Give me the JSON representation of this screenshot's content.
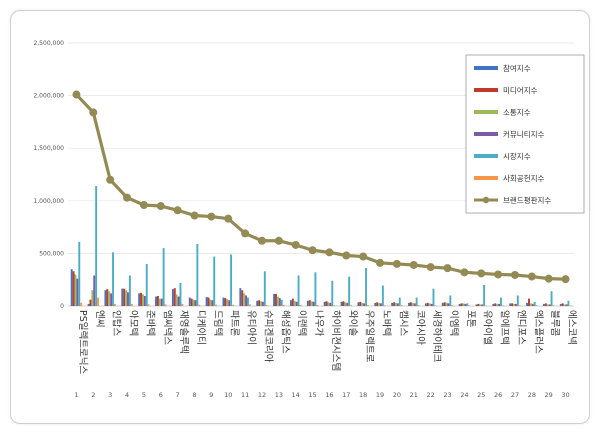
{
  "chart_data": {
    "type": "bar",
    "title": "",
    "xlabel": "",
    "ylabel": "",
    "ylim": [
      0,
      2500000
    ],
    "yticks": [
      "0",
      "500,000",
      "1,000,000",
      "1,500,000",
      "2,000,000",
      "2,500,000"
    ],
    "grid": true,
    "legend_position": "right",
    "categories": [
      "PS일렉트로닉스",
      "엔씨",
      "인탑스",
      "아모텍",
      "준바텍",
      "엠씨넥스",
      "재영솔루텍",
      "디케이티",
      "드림텍",
      "파트론",
      "유티아이",
      "슈피겐코리아",
      "해성옵틱스",
      "이랜텍",
      "나우가",
      "하이비젼시스템",
      "와이솔",
      "우주일렉트로",
      "노바텍",
      "캠시스",
      "코아시아",
      "세경하이테크",
      "이엠텍",
      "포톤",
      "유아이엘",
      "알에프텍",
      "엔디포스",
      "엑스플러스",
      "블루콤",
      "에스코넥"
    ],
    "category_numbers": [
      "1",
      "2",
      "3",
      "4",
      "5",
      "6",
      "7",
      "8",
      "9",
      "10",
      "11",
      "12",
      "13",
      "14",
      "15",
      "16",
      "17",
      "18",
      "19",
      "20",
      "21",
      "22",
      "23",
      "24",
      "25",
      "26",
      "27",
      "28",
      "29",
      "30"
    ],
    "series": [
      {
        "name": "참여지수",
        "type": "bar",
        "color": "#4472c4",
        "values": [
          350000,
          20000,
          150000,
          165000,
          120000,
          90000,
          160000,
          80000,
          85000,
          80000,
          170000,
          50000,
          115000,
          55000,
          50000,
          40000,
          40000,
          35000,
          30000,
          30000,
          30000,
          25000,
          30000,
          20000,
          15000,
          20000,
          25000,
          30000,
          20000,
          20000
        ]
      },
      {
        "name": "미디어지수",
        "type": "bar",
        "color": "#c0392b",
        "values": [
          330000,
          60000,
          160000,
          165000,
          125000,
          95000,
          170000,
          70000,
          80000,
          75000,
          150000,
          55000,
          115000,
          70000,
          55000,
          45000,
          45000,
          40000,
          35000,
          35000,
          35000,
          30000,
          35000,
          25000,
          20000,
          25000,
          25000,
          70000,
          25000,
          25000
        ]
      },
      {
        "name": "소통지수",
        "type": "bar",
        "color": "#9bbb59",
        "values": [
          300000,
          150000,
          140000,
          150000,
          110000,
          70000,
          110000,
          60000,
          60000,
          65000,
          120000,
          45000,
          90000,
          50000,
          45000,
          35000,
          35000,
          30000,
          30000,
          30000,
          30000,
          25000,
          30000,
          25000,
          15000,
          20000,
          20000,
          25000,
          15000,
          15000
        ]
      },
      {
        "name": "커뮤니티지수",
        "type": "bar",
        "color": "#7d5aa6",
        "values": [
          260000,
          290000,
          120000,
          130000,
          95000,
          70000,
          90000,
          55000,
          55000,
          55000,
          100000,
          40000,
          75000,
          40000,
          40000,
          30000,
          30000,
          25000,
          25000,
          25000,
          25000,
          20000,
          25000,
          20000,
          15000,
          20000,
          20000,
          20000,
          15000,
          15000
        ]
      },
      {
        "name": "시장지수",
        "type": "bar",
        "color": "#4bacc6",
        "values": [
          610000,
          1140000,
          510000,
          290000,
          400000,
          550000,
          220000,
          590000,
          470000,
          490000,
          80000,
          330000,
          60000,
          290000,
          320000,
          240000,
          280000,
          360000,
          195000,
          80000,
          80000,
          165000,
          100000,
          25000,
          200000,
          80000,
          100000,
          40000,
          140000,
          50000
        ]
      },
      {
        "name": "사회공헌지수",
        "type": "bar",
        "color": "#f79646",
        "values": [
          30000,
          80000,
          20000,
          20000,
          15000,
          15000,
          20000,
          12000,
          12000,
          12000,
          15000,
          10000,
          12000,
          10000,
          10000,
          8000,
          8000,
          8000,
          8000,
          8000,
          8000,
          6000,
          8000,
          6000,
          5000,
          6000,
          6000,
          8000,
          5000,
          5000
        ]
      },
      {
        "name": "브랜드평판지수",
        "type": "line",
        "color": "#948a54",
        "values": [
          2010000,
          1840000,
          1200000,
          1030000,
          960000,
          950000,
          910000,
          860000,
          850000,
          830000,
          690000,
          620000,
          620000,
          580000,
          530000,
          510000,
          480000,
          470000,
          410000,
          400000,
          390000,
          370000,
          360000,
          320000,
          310000,
          300000,
          295000,
          280000,
          260000,
          255000
        ]
      }
    ]
  }
}
